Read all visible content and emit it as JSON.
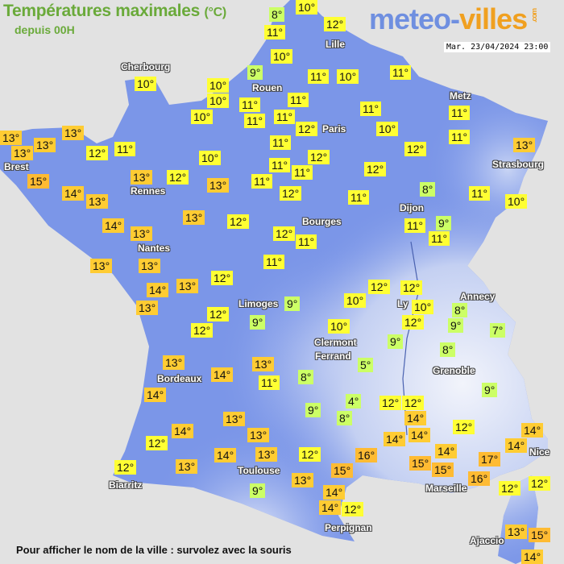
{
  "header": {
    "title": "Températures maximales",
    "unit": "(°C)",
    "subtitle": "depuis 00H",
    "datetime": "Mar. 23/04/2024 23:00"
  },
  "logo": {
    "part1": "meteo-",
    "part2": "villes",
    "suffix": ".com"
  },
  "footer": "Pour afficher le nom de la ville : survolez avec la souris",
  "colors": {
    "background": "#e2e2e2",
    "land": "#7b96e8",
    "cold": "#ccff66",
    "mild": "#ffff33",
    "warm": "#ffcc33",
    "hot": "#ffbb33",
    "title": "#6aaa3a"
  },
  "cities": [
    "Lille",
    "Cherbourg",
    "Rouen",
    "Metz",
    "Paris",
    "Brest",
    "Strasbourg",
    "Rennes",
    "Dijon",
    "Bourges",
    "Nantes",
    "Annecy",
    "Limoges",
    "Ly",
    "Clermont",
    "Ferrand",
    "Grenoble",
    "Bordeaux",
    "Nice",
    "Toulouse",
    "Biarritz",
    "Marseille",
    "Perpignan",
    "Ajaccio"
  ],
  "temperatures": [
    "8°",
    "10°",
    "12°",
    "11°",
    "10°",
    "9°",
    "11°",
    "10°",
    "11°",
    "10°",
    "10°",
    "10°",
    "11°",
    "11°",
    "11°",
    "10°",
    "11°",
    "11°",
    "12°",
    "10°",
    "11°",
    "11°",
    "13°",
    "13°",
    "13°",
    "13°",
    "12°",
    "11°",
    "11°",
    "11°",
    "12°",
    "12°",
    "13°",
    "10°",
    "11°",
    "12°",
    "15°",
    "13°",
    "12°",
    "13°",
    "11°",
    "14°",
    "13°",
    "12°",
    "11°",
    "8°",
    "11°",
    "10°",
    "14°",
    "13°",
    "13°",
    "12°",
    "12°",
    "11°",
    "11°",
    "9°",
    "11°",
    "13°",
    "13°",
    "11°",
    "12°",
    "14°",
    "13°",
    "13°",
    "12°",
    "12°",
    "9°",
    "9°",
    "10°",
    "12°",
    "12°",
    "10°",
    "12°",
    "8°",
    "9°",
    "7°",
    "10°",
    "9°",
    "8°",
    "5°",
    "13°",
    "13°",
    "14°",
    "11°",
    "8°",
    "14°",
    "4°",
    "12°",
    "12°",
    "9°",
    "8°",
    "14°",
    "13°",
    "14°",
    "13°",
    "12°",
    "9°",
    "14°",
    "14°",
    "14°",
    "14°",
    "14°",
    "15°",
    "15°",
    "17°",
    "16°",
    "12°",
    "14°",
    "13°",
    "12°",
    "16°",
    "15°",
    "12°",
    "13°",
    "13°",
    "12°",
    "12°",
    "9°",
    "14°",
    "14°",
    "12°",
    "13°",
    "15°",
    "14°"
  ]
}
